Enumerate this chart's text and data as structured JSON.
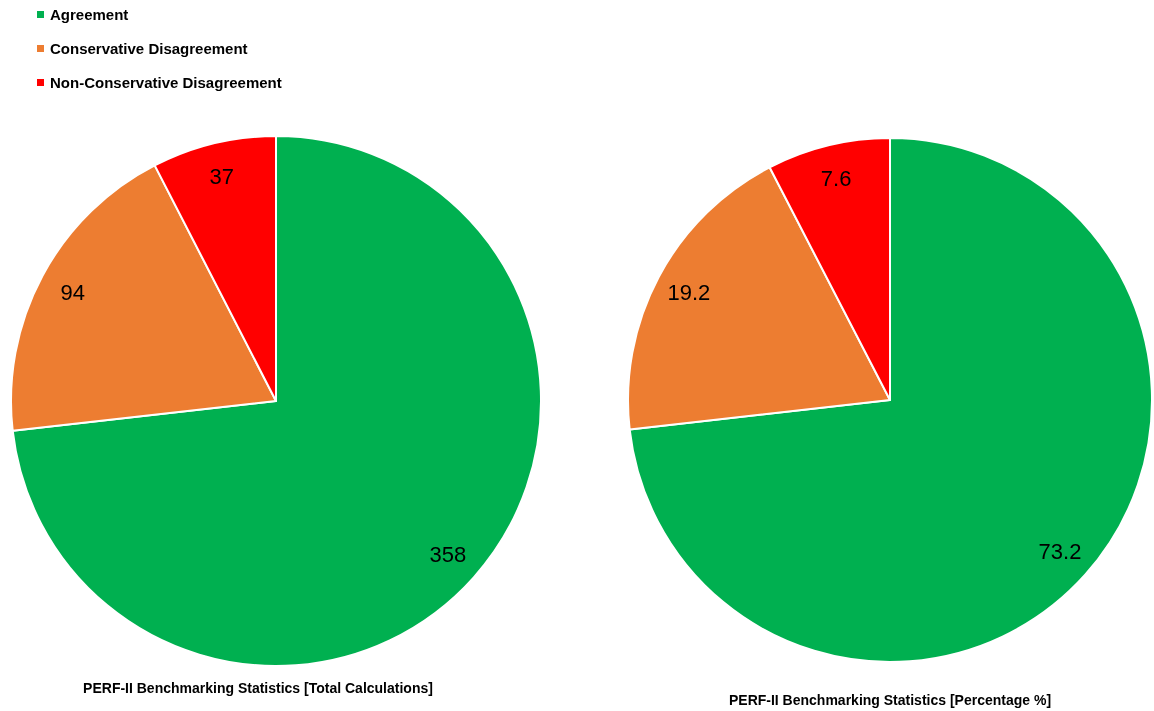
{
  "chart_data": [
    {
      "type": "pie",
      "title": "PERF-II Benchmarking Statistics [Total Calculations]",
      "categories": [
        "Agreement",
        "Conservative Disagreement",
        "Non-Conservative Disagreement"
      ],
      "values": [
        358,
        94,
        37
      ],
      "colors": [
        "#00b050",
        "#ed7d31",
        "#ff0000"
      ],
      "data_labels": true,
      "legend": "top left"
    },
    {
      "type": "pie",
      "title": "PERF-II Benchmarking Statistics [Percentage %]",
      "categories": [
        null,
        null,
        null
      ],
      "values": [
        73.2,
        19.2,
        7.6
      ],
      "colors": [
        "#00b050",
        "#ed7d31",
        "#ff0000"
      ],
      "data_labels": true
    }
  ]
}
